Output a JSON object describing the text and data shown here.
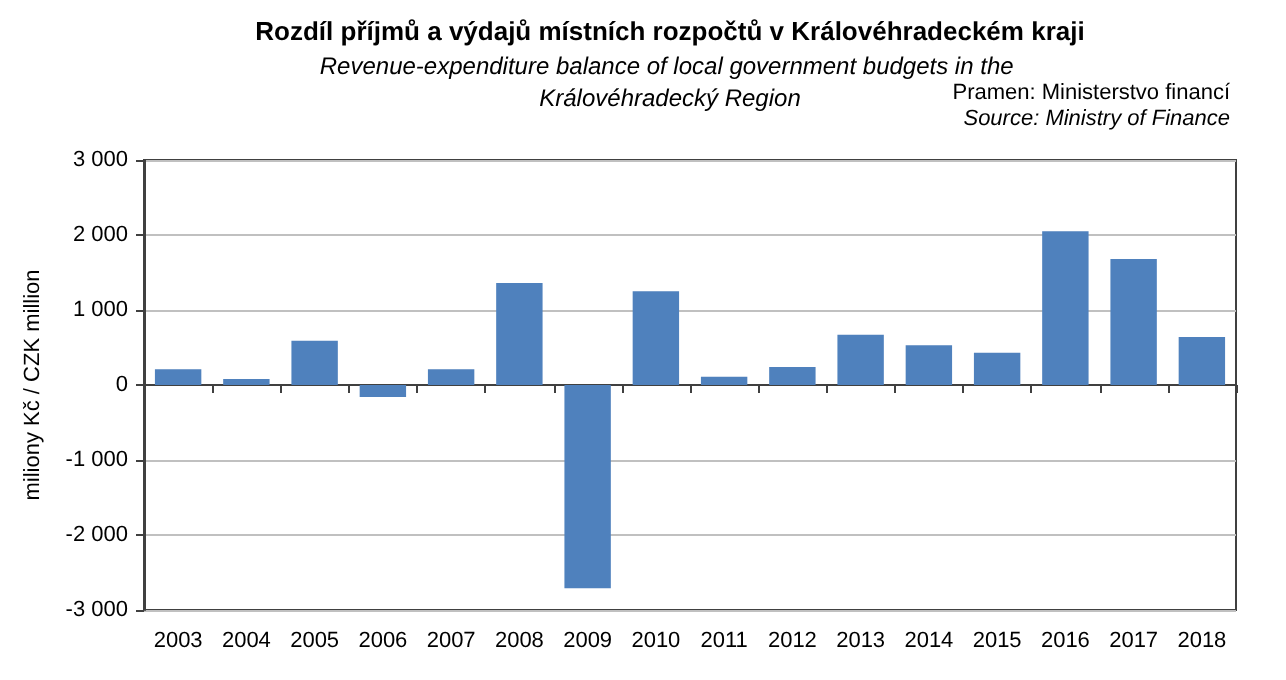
{
  "chart_data": {
    "type": "bar",
    "title": "Rozdíl příjmů a výdajů místních rozpočtů v Královéhradeckém kraji",
    "subtitle": "Revenue-expenditure balance of local government budgets in the Královéhradecký Region",
    "ylabel": "miliony Kč / CZK million",
    "annotations": [
      "Pramen: Ministerstvo financí",
      "Source: Ministry of Finance"
    ],
    "categories": [
      "2003",
      "2004",
      "2005",
      "2006",
      "2007",
      "2008",
      "2009",
      "2010",
      "2011",
      "2012",
      "2013",
      "2014",
      "2015",
      "2016",
      "2017",
      "2018"
    ],
    "values": [
      210,
      80,
      590,
      -160,
      210,
      1360,
      -2710,
      1250,
      110,
      240,
      670,
      530,
      430,
      2050,
      1680,
      640
    ],
    "color": "#4f81bd",
    "ylim": [
      -3000,
      3000
    ],
    "yticks": [
      {
        "value": -3000,
        "label": "-3 000"
      },
      {
        "value": -2000,
        "label": "-2 000"
      },
      {
        "value": -1000,
        "label": "-1 000"
      },
      0,
      {
        "value": 1000,
        "label": "1 000"
      },
      {
        "value": 2000,
        "label": "2 000"
      },
      {
        "value": 3000,
        "label": "3 000"
      }
    ],
    "grid": "y"
  }
}
